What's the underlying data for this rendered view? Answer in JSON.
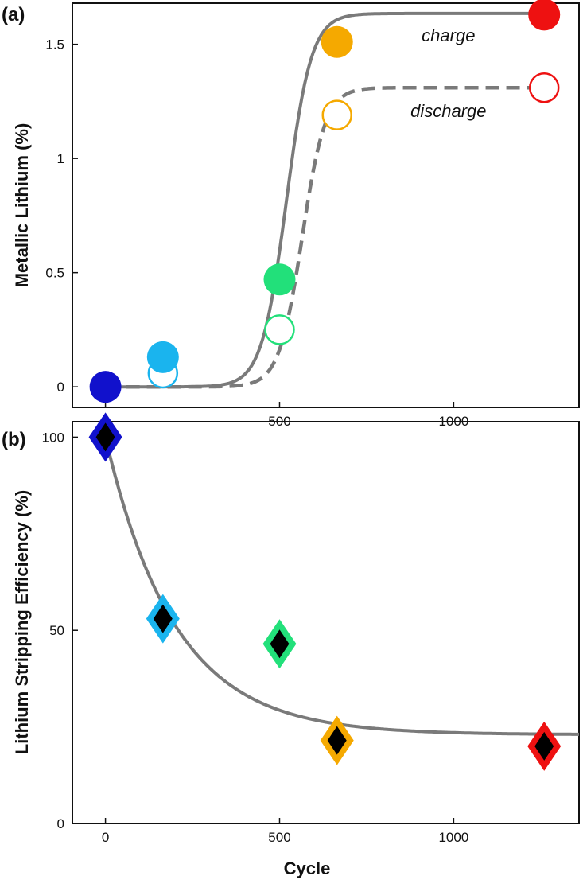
{
  "chart_data": [
    {
      "panel": "(a)",
      "type": "scatter",
      "ylabel": "Metallic Lithium (%)",
      "xlim": [
        -95,
        1360
      ],
      "ylim": [
        -0.09,
        1.68
      ],
      "xticks": [
        0,
        500,
        1000
      ],
      "xtick_labels": [
        "0",
        "500",
        "1000"
      ],
      "yticks": [
        0,
        0.5,
        1,
        1.5
      ],
      "ytick_labels": [
        "0",
        "0.5",
        "1",
        "1.5"
      ],
      "grid": false,
      "series": [
        {
          "name": "charge",
          "marker": "filled-circle",
          "x": [
            0,
            165,
            500,
            665,
            1260
          ],
          "y": [
            0.0,
            0.13,
            0.47,
            1.51,
            1.63
          ],
          "colors": [
            "#1111cc",
            "#1ab4ee",
            "#22e07a",
            "#f5a900",
            "#ee1111"
          ]
        },
        {
          "name": "discharge",
          "marker": "open-circle",
          "x": [
            165,
            500,
            665,
            1260
          ],
          "y": [
            0.06,
            0.25,
            1.19,
            1.31
          ],
          "colors": [
            "#1ab4ee",
            "#22e07a",
            "#f5a900",
            "#ee1111"
          ]
        }
      ],
      "fits": [
        {
          "style": "solid",
          "lower": 0,
          "upper": 1.635,
          "x0": 520,
          "k": 0.028,
          "xstart": 0,
          "xend": 1260
        },
        {
          "style": "dashed",
          "lower": 0,
          "upper": 1.31,
          "x0": 565,
          "k": 0.03,
          "xstart": 0,
          "xend": 1260
        }
      ],
      "annotations": [
        {
          "text": "charge",
          "x": 985,
          "y": 1.54
        },
        {
          "text": "discharge",
          "x": 985,
          "y": 1.21
        }
      ]
    },
    {
      "panel": "(b)",
      "type": "scatter",
      "xlabel": "Cycle",
      "ylabel": "Lithium Stripping Efficiency (%)",
      "xlim": [
        -95,
        1360
      ],
      "ylim": [
        0,
        104
      ],
      "xticks": [
        0,
        500,
        1000
      ],
      "xtick_labels": [
        "0",
        "500",
        "1000"
      ],
      "yticks": [
        0,
        50,
        100
      ],
      "ytick_labels": [
        "0",
        "50",
        "100"
      ],
      "grid": false,
      "series": [
        {
          "marker": "diamond",
          "x": [
            0,
            165,
            500,
            665,
            1260
          ],
          "y": [
            100,
            53,
            46.5,
            21.5,
            20
          ],
          "colors": [
            "#1111cc",
            "#1ab4ee",
            "#22e07a",
            "#f5a900",
            "#ee1111"
          ]
        }
      ],
      "fit": {
        "a": 77,
        "tau": 200,
        "c": 23,
        "xstart": 0,
        "xend": 1360
      }
    }
  ]
}
